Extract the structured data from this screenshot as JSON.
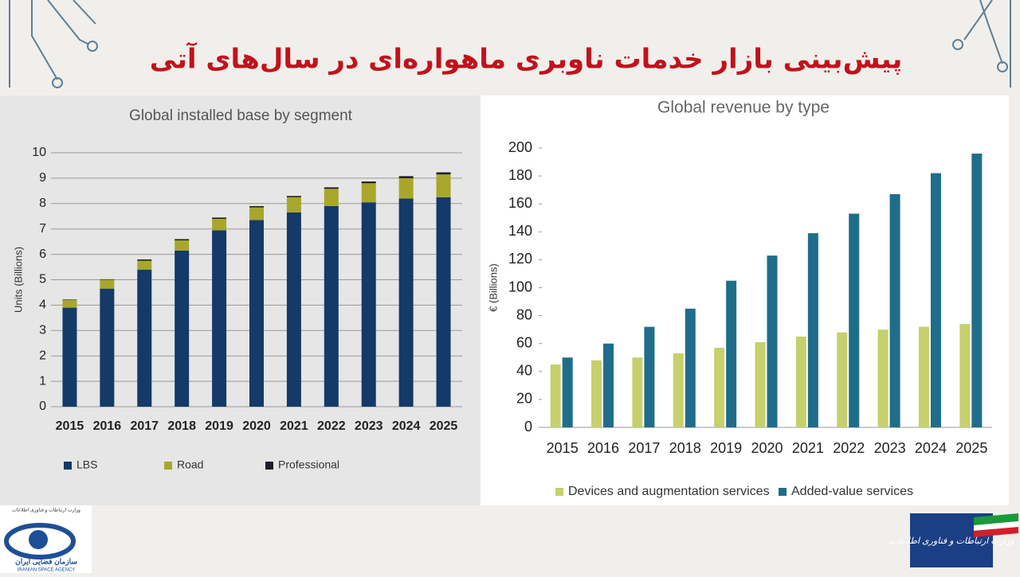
{
  "slide": {
    "title": "پیش‌بینی بازار خدمات ناوبری ماهواره‌ای در سال‌های آتی"
  },
  "logos": {
    "left_top": "وزارت ارتباطات و فناوری اطلاعات",
    "left_name": "سازمان فضایی ایران",
    "left_english": "IRANIAN SPACE AGENCY",
    "right": "وزارت ارتباطات و فناوری اطلاعات"
  },
  "chart_data": [
    {
      "type": "stacked-bar",
      "title": "Global installed base by segment",
      "y_label": "Units (Billions)",
      "categories": [
        "2015",
        "2016",
        "2017",
        "2018",
        "2019",
        "2020",
        "2021",
        "2022",
        "2023",
        "2024",
        "2025"
      ],
      "series": [
        {
          "name": "LBS",
          "color": "#133a68",
          "values": [
            3.9,
            4.65,
            5.4,
            6.15,
            6.95,
            7.35,
            7.65,
            7.9,
            8.05,
            8.2,
            8.25
          ]
        },
        {
          "name": "Road",
          "color": "#a8a72c",
          "values": [
            0.3,
            0.35,
            0.35,
            0.4,
            0.45,
            0.5,
            0.6,
            0.68,
            0.75,
            0.8,
            0.9
          ]
        },
        {
          "name": "Professional",
          "color": "#1b1d2b",
          "values": [
            0.02,
            0.02,
            0.05,
            0.05,
            0.05,
            0.05,
            0.05,
            0.06,
            0.07,
            0.08,
            0.08
          ]
        }
      ],
      "ylim": [
        0,
        10
      ],
      "yticks": [
        0,
        1,
        2,
        3,
        4,
        5,
        6,
        7,
        8,
        9,
        10
      ],
      "grid": true
    },
    {
      "type": "bar",
      "title": "Global revenue by type",
      "y_label": "€ (Billions)",
      "categories": [
        "2015",
        "2016",
        "2017",
        "2018",
        "2019",
        "2020",
        "2021",
        "2022",
        "2023",
        "2024",
        "2025"
      ],
      "series": [
        {
          "name": "Devices and augmentation services",
          "color": "#c6d06c",
          "values": [
            45,
            48,
            50,
            53,
            57,
            61,
            65,
            68,
            70,
            72,
            74
          ]
        },
        {
          "name": "Added-value services",
          "color": "#1f6d8a",
          "values": [
            50,
            60,
            72,
            85,
            105,
            123,
            139,
            153,
            167,
            182,
            196
          ]
        }
      ],
      "ylim": [
        0,
        200
      ],
      "yticks": [
        0,
        20,
        40,
        60,
        80,
        100,
        120,
        140,
        160,
        180,
        200
      ],
      "grid": false
    }
  ]
}
